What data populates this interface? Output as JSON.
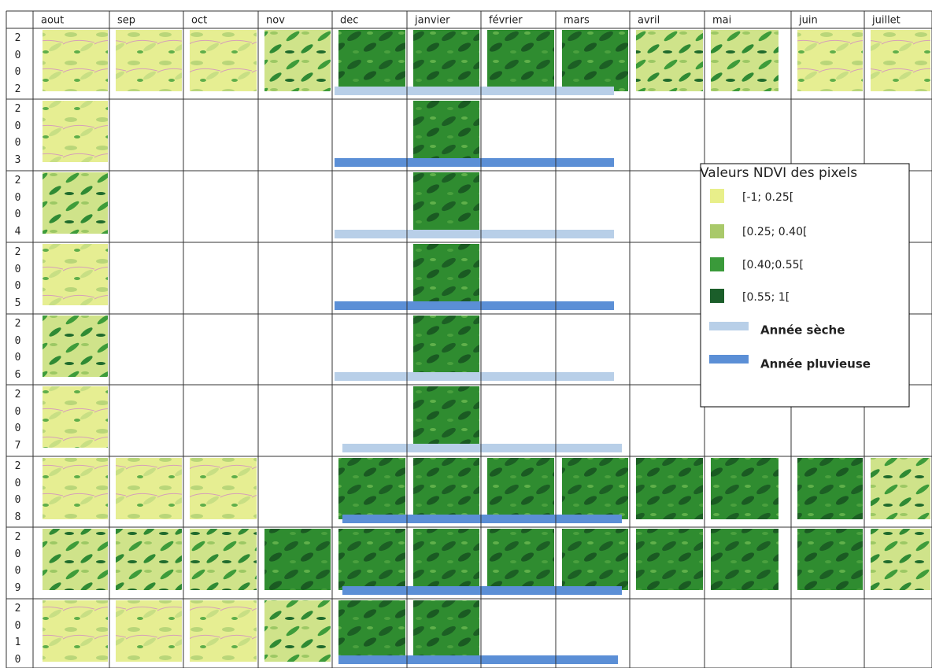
{
  "table": {
    "header": [
      "aout",
      "sep",
      "oct",
      "nov",
      "dec",
      "janvier",
      "février",
      "mars",
      "avril",
      "mai",
      "juin",
      "juillet"
    ],
    "rows": [
      "2002",
      "2003",
      "2004",
      "2005",
      "2006",
      "2007",
      "2008",
      "2009",
      "2010"
    ]
  },
  "legend": {
    "title": "Valeurs NDVI des pixels",
    "items": [
      "[-1; 0.25[",
      "[0.25; 0.40[",
      "[0.40;0.55[",
      "[0.55; 1["
    ],
    "dry": "Année sèche",
    "wet": "Année pluvieuse"
  }
}
